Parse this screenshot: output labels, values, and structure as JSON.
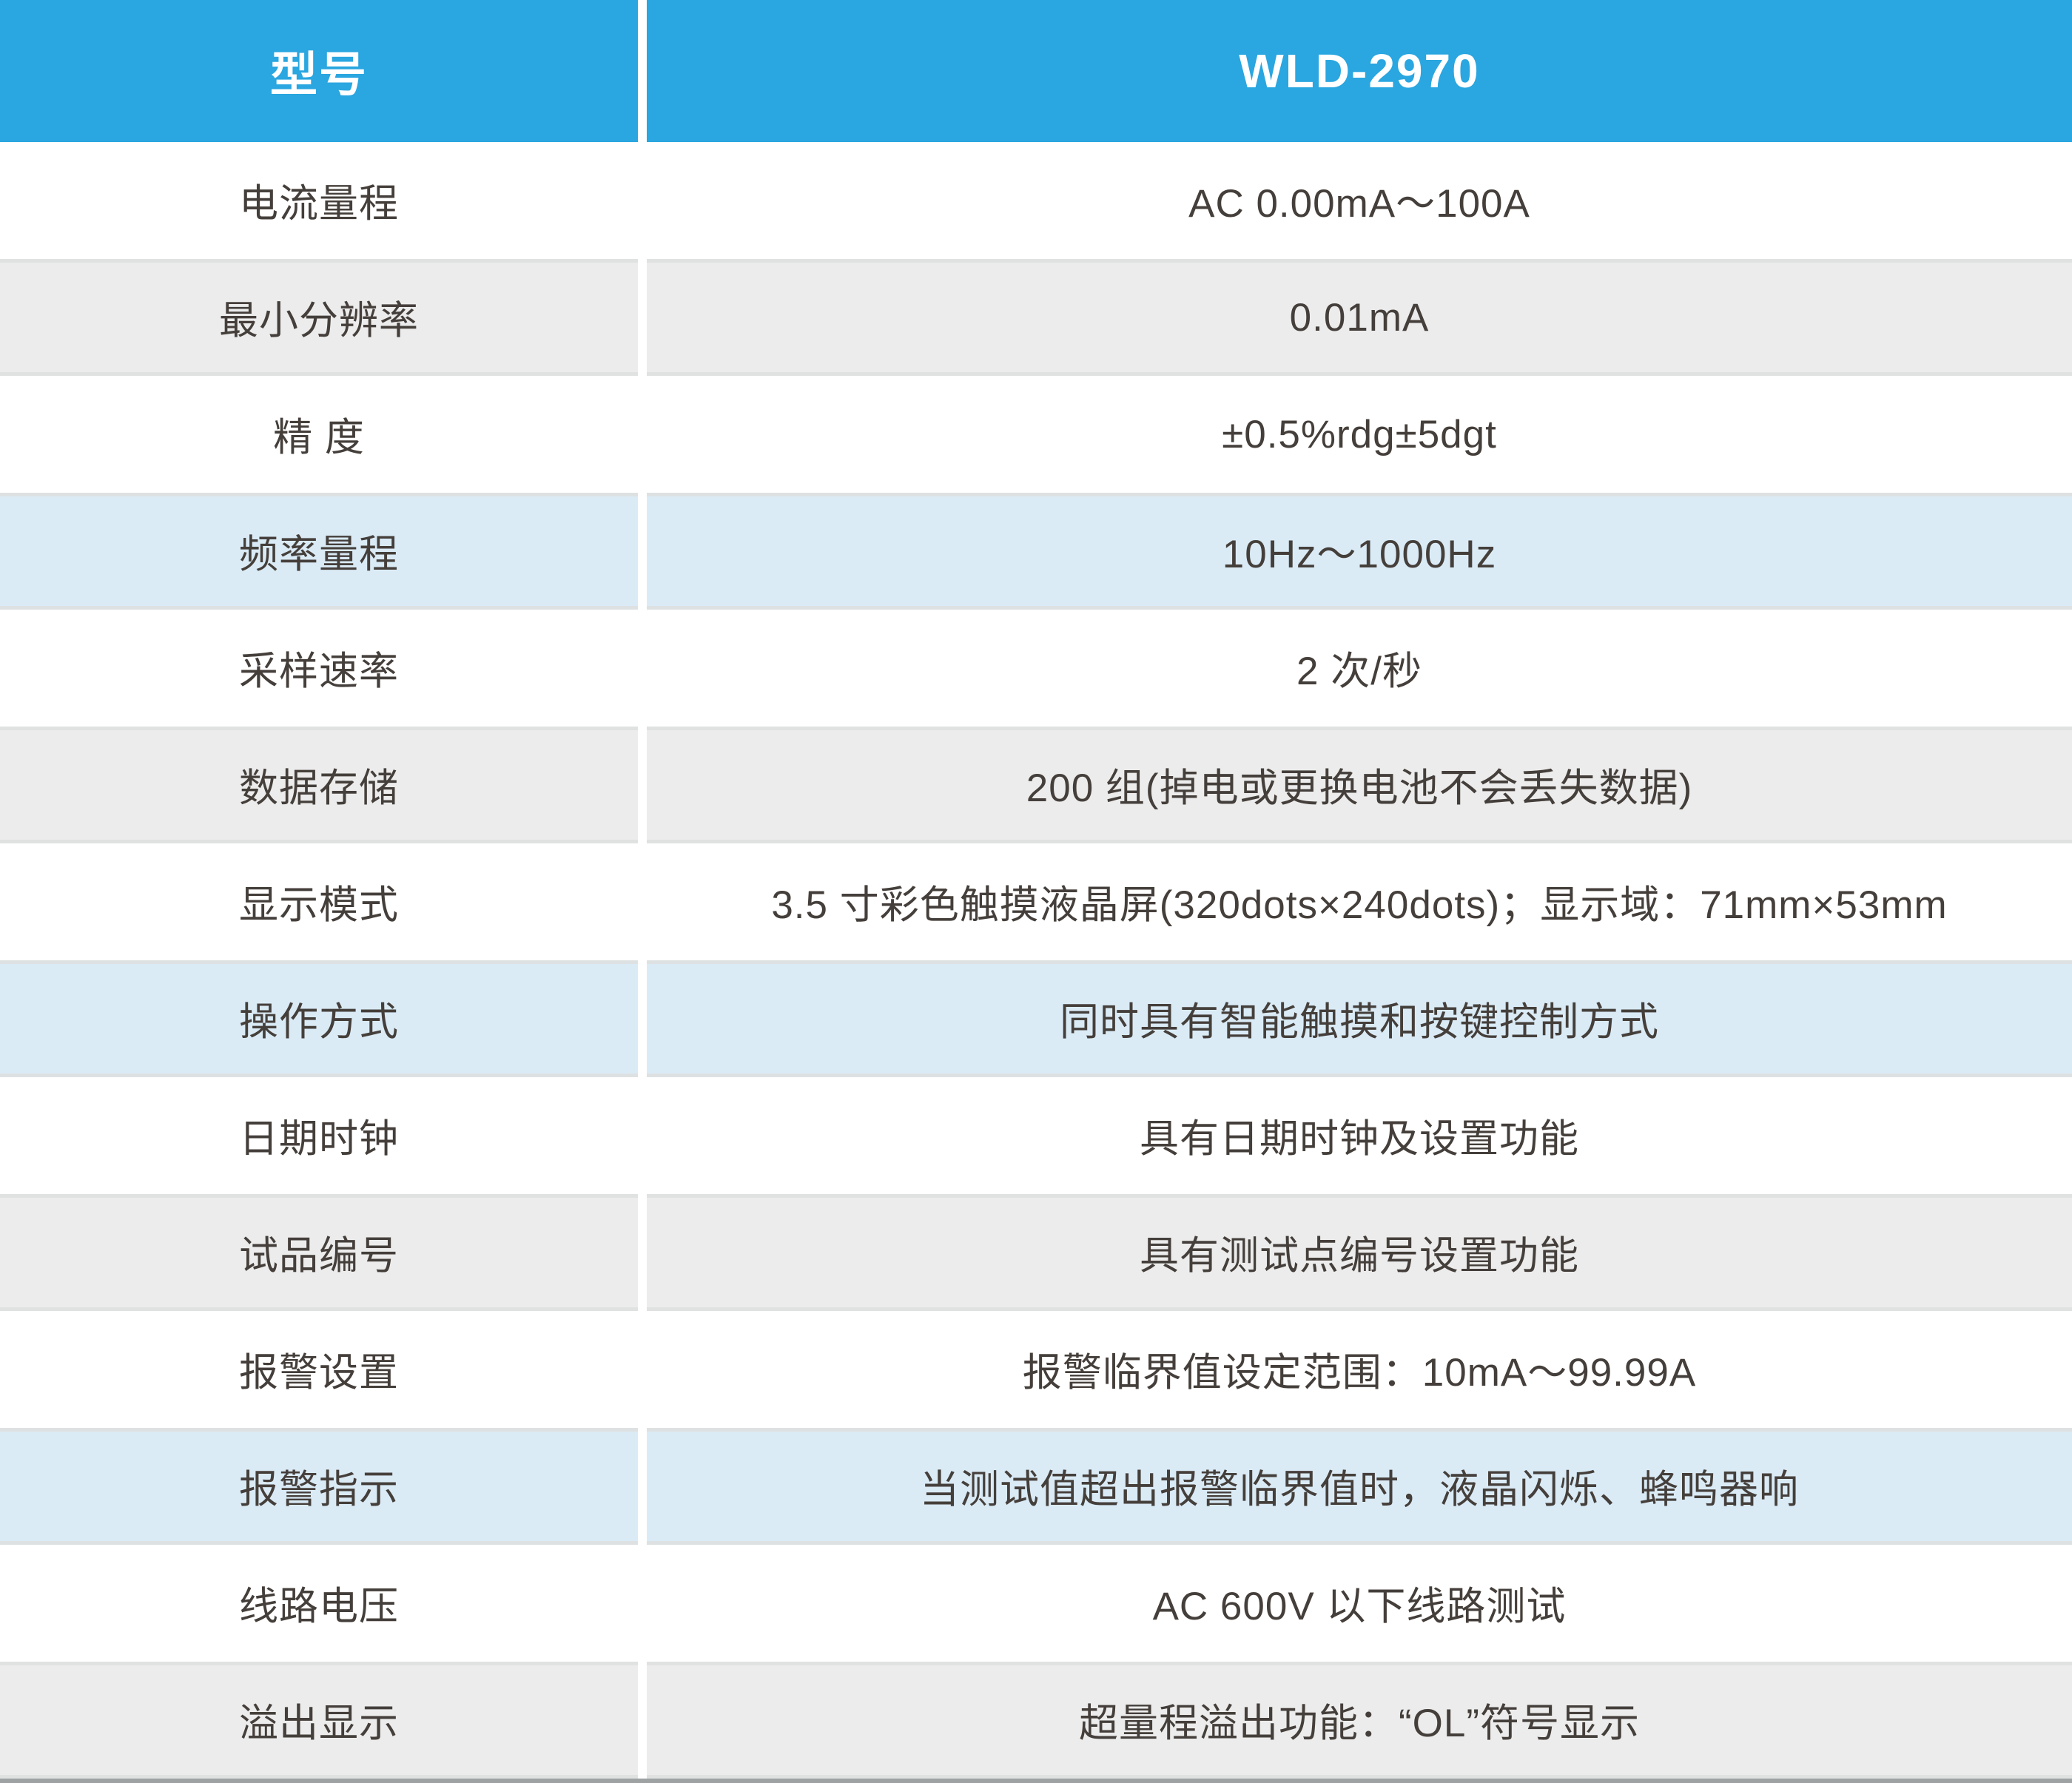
{
  "table": {
    "header": {
      "label": "型号",
      "value": "WLD-2970"
    },
    "rows": [
      {
        "label": "电流量程",
        "value": "AC 0.00mA～100A",
        "variant": "white"
      },
      {
        "label": "最小分辨率",
        "value": "0.01mA",
        "variant": "gray"
      },
      {
        "label": "精 度",
        "value": "±0.5%rdg±5dgt",
        "variant": "white"
      },
      {
        "label": "频率量程",
        "value": "10Hz～1000Hz",
        "variant": "blue"
      },
      {
        "label": "采样速率",
        "value": "2 次/秒",
        "variant": "white"
      },
      {
        "label": "数据存储",
        "value": "200 组(掉电或更换电池不会丢失数据)",
        "variant": "gray"
      },
      {
        "label": "显示模式",
        "value": "3.5 寸彩色触摸液晶屏(320dots×240dots)；显示域：71mm×53mm",
        "variant": "white"
      },
      {
        "label": "操作方式",
        "value": "同时具有智能触摸和按键控制方式",
        "variant": "blue"
      },
      {
        "label": "日期时钟",
        "value": "具有日期时钟及设置功能",
        "variant": "white"
      },
      {
        "label": "试品编号",
        "value": "具有测试点编号设置功能",
        "variant": "gray"
      },
      {
        "label": "报警设置",
        "value": "报警临界值设定范围：10mA～99.99A",
        "variant": "white"
      },
      {
        "label": "报警指示",
        "value": "当测试值超出报警临界值时，液晶闪烁、蜂鸣器响",
        "variant": "blue"
      },
      {
        "label": "线路电压",
        "value": "AC 600V 以下线路测试",
        "variant": "white"
      },
      {
        "label": "溢出显示",
        "value": "超量程溢出功能：“OL”符号显示",
        "variant": "gray"
      }
    ]
  },
  "colors": {
    "header_background": "#2AA6E0",
    "header_text": "#FFFFFF",
    "row_gray": "#ECECEC",
    "row_blue": "#DAEBF6",
    "row_white": "#FFFFFF",
    "row_edge": "#E0E2E2",
    "body_text": "#453F3B",
    "bottom_bar": "#9EA2A2"
  }
}
